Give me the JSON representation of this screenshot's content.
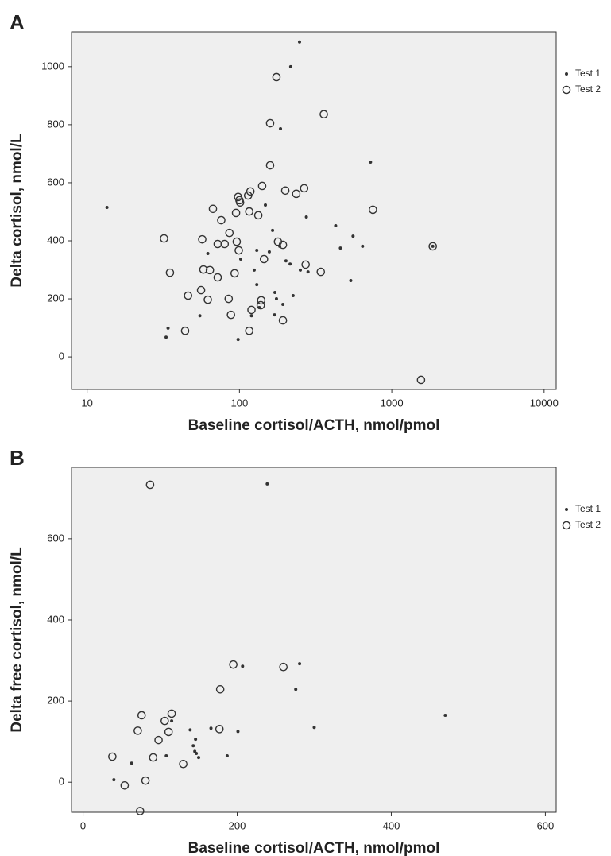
{
  "chart_data": [
    {
      "type": "scatter",
      "label": "A",
      "xscale": "log",
      "x_label": "Baseline cortisol/ACTH, nmol/pmol",
      "y_label": "Delta cortisol, nmol/L",
      "xlim": [
        7.9,
        12000
      ],
      "ylim": [
        -112,
        1120
      ],
      "xticks": [
        10,
        100,
        1000,
        10000
      ],
      "yticks": [
        0,
        200,
        400,
        600,
        800,
        1000
      ],
      "series": [
        {
          "name": "Test 1",
          "marker": "dot",
          "color": "#333333",
          "x": [
            248,
            217,
            186,
            725,
            13.5,
            148,
            428,
            275,
            557,
            643,
            460,
            165,
            62,
            102,
            157,
            184,
            130,
            202,
            215,
            251,
            282,
            125,
            130,
            538,
            171,
            175,
            193,
            135,
            225,
            55,
            34,
            33,
            98,
            120,
            170,
            1858
          ],
          "values": [
            1085,
            1000,
            786,
            671,
            515,
            523,
            452,
            482,
            416,
            381,
            375,
            436,
            356,
            337,
            362,
            381,
            367,
            331,
            320,
            299,
            293,
            299,
            249,
            263,
            222,
            200,
            181,
            170,
            211,
            142,
            99,
            68,
            60,
            142,
            145,
            381
          ]
        },
        {
          "name": "Test 2",
          "marker": "circle",
          "color": "#333333",
          "x": [
            175,
            159,
            358,
            159,
            141,
            200,
            266,
            236,
            752,
            118,
            114,
            100,
            98,
            101,
            67,
            95,
            116,
            133,
            76,
            86,
            32,
            57,
            72,
            80,
            96,
            179,
            193,
            99,
            145,
            272,
            1858,
            35,
            58,
            64,
            72,
            93,
            342,
            46,
            56,
            62,
            85,
            138,
            120,
            139,
            88,
            44,
            116,
            193,
            1556
          ],
          "values": [
            964,
            805,
            836,
            660,
            589,
            573,
            581,
            562,
            507,
            570,
            556,
            540,
            551,
            532,
            510,
            496,
            501,
            488,
            471,
            427,
            408,
            405,
            389,
            389,
            397,
            397,
            386,
            367,
            337,
            318,
            381,
            290,
            301,
            299,
            274,
            288,
            293,
            211,
            230,
            197,
            200,
            178,
            162,
            195,
            145,
            90,
            90,
            126,
            -79
          ]
        }
      ]
    },
    {
      "type": "scatter",
      "label": "B",
      "xscale": "linear",
      "x_label": "Baseline cortisol/ACTH, nmol/pmol",
      "y_label": "Delta free cortisol, nmol/L",
      "xlim": [
        -15,
        614
      ],
      "ylim": [
        -74,
        776
      ],
      "xticks": [
        0,
        200,
        400,
        600
      ],
      "yticks": [
        0,
        200,
        400,
        600
      ],
      "series": [
        {
          "name": "Test 1",
          "marker": "dot",
          "color": "#333333",
          "x": [
            239,
            207,
            281,
            276,
            470,
            300,
            139,
            166,
            201,
            146,
            143,
            145,
            147,
            150,
            108,
            187,
            63,
            40,
            115
          ],
          "values": [
            735,
            286,
            292,
            229,
            165,
            135,
            129,
            133,
            125,
            106,
            90,
            76,
            71,
            61,
            65,
            65,
            47,
            6,
            151
          ]
        },
        {
          "name": "Test 2",
          "marker": "circle",
          "color": "#333333",
          "x": [
            87,
            195,
            260,
            178,
            76,
            115,
            71,
            106,
            111,
            98,
            177,
            38,
            91,
            130,
            81,
            54,
            74
          ],
          "values": [
            733,
            290,
            284,
            229,
            165,
            169,
            127,
            151,
            124,
            104,
            131,
            63,
            61,
            45,
            4,
            -8,
            -71
          ]
        }
      ]
    }
  ]
}
